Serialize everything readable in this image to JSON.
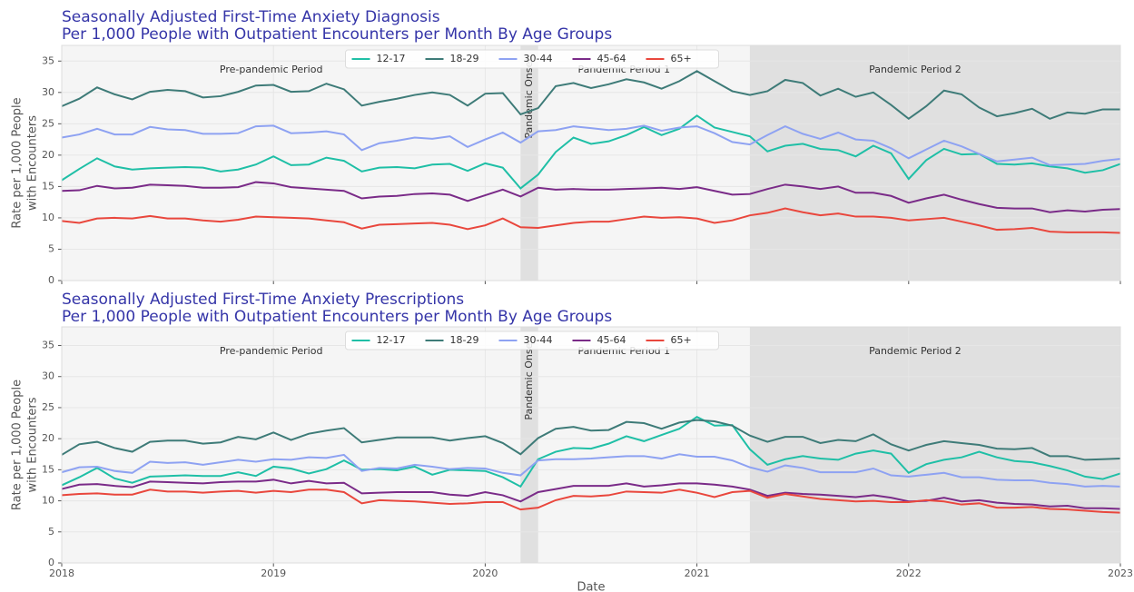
{
  "chart_data": [
    {
      "type": "line",
      "title": [
        "Seasonally Adjusted First-Time Anxiety Diagnosis",
        " Per 1,000 People with Outpatient Encounters per Month By Age Groups"
      ],
      "ylabel": [
        "Rate per 1,000 People",
        "with Encounters"
      ],
      "x": [
        2018,
        2018.083,
        2018.167,
        2018.25,
        2018.333,
        2018.417,
        2018.5,
        2018.583,
        2018.667,
        2018.75,
        2018.833,
        2018.917,
        2019,
        2019.083,
        2019.167,
        2019.25,
        2019.333,
        2019.417,
        2019.5,
        2019.583,
        2019.667,
        2019.75,
        2019.833,
        2019.917,
        2020,
        2020.083,
        2020.167,
        2020.25,
        2020.333,
        2020.417,
        2020.5,
        2020.583,
        2020.667,
        2020.75,
        2020.833,
        2020.917,
        2021,
        2021.083,
        2021.167,
        2021.25,
        2021.333,
        2021.417,
        2021.5,
        2021.583,
        2021.667,
        2021.75,
        2021.833,
        2021.917,
        2022,
        2022.083,
        2022.167,
        2022.25,
        2022.333,
        2022.417,
        2022.5,
        2022.583,
        2022.667,
        2022.75,
        2022.833,
        2022.917,
        2023
      ],
      "series": [
        {
          "name": "12-17",
          "color": "#1fbfa6",
          "values": [
            16.0,
            17.8,
            19.5,
            18.2,
            17.7,
            17.9,
            18.0,
            18.1,
            18.0,
            17.4,
            17.7,
            18.5,
            19.8,
            18.4,
            18.5,
            19.6,
            19.1,
            17.4,
            18.0,
            18.1,
            17.9,
            18.5,
            18.6,
            17.5,
            18.7,
            18.0,
            14.7,
            16.9,
            20.5,
            22.8,
            21.8,
            22.2,
            23.2,
            24.5,
            23.2,
            24.2,
            26.3,
            24.4,
            23.7,
            23.0,
            20.6,
            21.5,
            21.8,
            21.0,
            20.8,
            19.8,
            21.5,
            20.3,
            16.2,
            19.2,
            21.0,
            20.1,
            20.2,
            18.6,
            18.5,
            18.7,
            18.2,
            17.9,
            17.2,
            17.6,
            18.6
          ]
        },
        {
          "name": "18-29",
          "color": "#3e7b78",
          "values": [
            27.8,
            29.0,
            30.8,
            29.7,
            28.9,
            30.1,
            30.4,
            30.2,
            29.2,
            29.4,
            30.1,
            31.1,
            31.2,
            30.1,
            30.2,
            31.4,
            30.5,
            27.9,
            28.5,
            29.0,
            29.6,
            30.0,
            29.6,
            27.9,
            29.8,
            29.9,
            26.5,
            27.5,
            31.0,
            31.5,
            30.7,
            31.3,
            32.1,
            31.6,
            30.6,
            31.8,
            33.4,
            31.8,
            30.2,
            29.6,
            30.2,
            32.0,
            31.5,
            29.5,
            30.6,
            29.3,
            30.0,
            28.0,
            25.8,
            27.8,
            30.3,
            29.7,
            27.6,
            26.2,
            26.7,
            27.4,
            25.8,
            26.8,
            26.6,
            27.3,
            27.3
          ]
        },
        {
          "name": "30-44",
          "color": "#8ea2f2",
          "values": [
            22.8,
            23.3,
            24.2,
            23.3,
            23.3,
            24.5,
            24.1,
            24.0,
            23.4,
            23.4,
            23.5,
            24.6,
            24.7,
            23.5,
            23.6,
            23.8,
            23.3,
            20.8,
            21.9,
            22.3,
            22.8,
            22.6,
            23.0,
            21.3,
            22.5,
            23.6,
            22.0,
            23.8,
            24.0,
            24.6,
            24.3,
            24.0,
            24.2,
            24.7,
            23.9,
            24.4,
            24.6,
            23.5,
            22.1,
            21.7,
            23.2,
            24.6,
            23.4,
            22.6,
            23.6,
            22.5,
            22.3,
            21.1,
            19.5,
            20.9,
            22.3,
            21.4,
            20.2,
            19.0,
            19.3,
            19.6,
            18.4,
            18.5,
            18.6,
            19.1,
            19.4
          ]
        },
        {
          "name": "45-64",
          "color": "#7a2b88",
          "values": [
            14.3,
            14.4,
            15.1,
            14.7,
            14.8,
            15.3,
            15.2,
            15.1,
            14.8,
            14.8,
            14.9,
            15.7,
            15.5,
            14.9,
            14.7,
            14.5,
            14.3,
            13.1,
            13.4,
            13.5,
            13.8,
            13.9,
            13.7,
            12.7,
            13.6,
            14.5,
            13.4,
            14.8,
            14.5,
            14.6,
            14.5,
            14.5,
            14.6,
            14.7,
            14.8,
            14.6,
            14.9,
            14.3,
            13.7,
            13.8,
            14.6,
            15.3,
            15.0,
            14.6,
            15.0,
            14.0,
            14.0,
            13.5,
            12.4,
            13.1,
            13.7,
            12.9,
            12.2,
            11.6,
            11.5,
            11.5,
            10.9,
            11.2,
            11.0,
            11.3,
            11.4
          ]
        },
        {
          "name": "65+",
          "color": "#e9473d",
          "values": [
            9.5,
            9.2,
            9.9,
            10.0,
            9.9,
            10.3,
            9.9,
            9.9,
            9.6,
            9.4,
            9.7,
            10.2,
            10.1,
            10.0,
            9.9,
            9.6,
            9.3,
            8.3,
            8.9,
            9.0,
            9.1,
            9.2,
            8.9,
            8.2,
            8.8,
            9.9,
            8.5,
            8.4,
            8.8,
            9.2,
            9.4,
            9.4,
            9.8,
            10.2,
            10.0,
            10.1,
            9.9,
            9.2,
            9.6,
            10.4,
            10.8,
            11.5,
            10.9,
            10.4,
            10.7,
            10.2,
            10.2,
            10.0,
            9.6,
            9.8,
            10.0,
            9.4,
            8.8,
            8.1,
            8.2,
            8.4,
            7.8,
            7.7,
            7.7,
            7.7,
            7.6
          ]
        }
      ],
      "xlim": [
        2018,
        2023
      ],
      "ylim": [
        0,
        37.5
      ],
      "xticks": [
        2018,
        2019,
        2020,
        2021,
        2022,
        2023
      ],
      "yticks": [
        0,
        5,
        10,
        15,
        20,
        25,
        30,
        35
      ],
      "show_xtick_labels": false,
      "grid": true,
      "legend": "upper center",
      "periods": [
        {
          "label": "Pre-pandemic Period",
          "start": 2018,
          "end": 2020.167,
          "shaded": false
        },
        {
          "label": "Pandemic Onset",
          "start": 2020.167,
          "end": 2020.25,
          "shaded": true,
          "vertical": true
        },
        {
          "label": "Pandemic Period 1",
          "start": 2020.25,
          "end": 2021.25,
          "shaded": false
        },
        {
          "label": "Pandemic Period 2",
          "start": 2021.25,
          "end": 2023,
          "shaded": true
        }
      ]
    },
    {
      "type": "line",
      "title": [
        "Seasonally Adjusted First-Time Anxiety Prescriptions",
        " Per 1,000 People with Outpatient Encounters per Month By Age Groups"
      ],
      "ylabel": [
        "Rate per 1,000 People",
        "with Encounters"
      ],
      "xlabel": "Date",
      "x": [
        2018,
        2018.083,
        2018.167,
        2018.25,
        2018.333,
        2018.417,
        2018.5,
        2018.583,
        2018.667,
        2018.75,
        2018.833,
        2018.917,
        2019,
        2019.083,
        2019.167,
        2019.25,
        2019.333,
        2019.417,
        2019.5,
        2019.583,
        2019.667,
        2019.75,
        2019.833,
        2019.917,
        2020,
        2020.083,
        2020.167,
        2020.25,
        2020.333,
        2020.417,
        2020.5,
        2020.583,
        2020.667,
        2020.75,
        2020.833,
        2020.917,
        2021,
        2021.083,
        2021.167,
        2021.25,
        2021.333,
        2021.417,
        2021.5,
        2021.583,
        2021.667,
        2021.75,
        2021.833,
        2021.917,
        2022,
        2022.083,
        2022.167,
        2022.25,
        2022.333,
        2022.417,
        2022.5,
        2022.583,
        2022.667,
        2022.75,
        2022.833,
        2022.917,
        2023
      ],
      "series": [
        {
          "name": "12-17",
          "color": "#1fbfa6",
          "values": [
            12.5,
            13.8,
            15.3,
            13.6,
            12.9,
            13.9,
            14.0,
            14.1,
            14.0,
            14.0,
            14.6,
            14.0,
            15.5,
            15.2,
            14.4,
            15.1,
            16.5,
            15.0,
            15.1,
            14.9,
            15.5,
            14.2,
            15.0,
            14.9,
            14.8,
            13.8,
            12.3,
            16.7,
            17.9,
            18.5,
            18.4,
            19.2,
            20.4,
            19.6,
            20.6,
            21.6,
            23.5,
            22.1,
            22.2,
            18.3,
            15.8,
            16.7,
            17.2,
            16.8,
            16.6,
            17.6,
            18.1,
            17.6,
            14.5,
            15.9,
            16.6,
            17.0,
            17.9,
            17.0,
            16.4,
            16.2,
            15.6,
            14.9,
            13.9,
            13.5,
            14.4
          ]
        },
        {
          "name": "18-29",
          "color": "#3e7b78",
          "values": [
            17.4,
            19.1,
            19.5,
            18.5,
            17.9,
            19.5,
            19.7,
            19.7,
            19.2,
            19.4,
            20.3,
            19.9,
            21.0,
            19.8,
            20.8,
            21.3,
            21.7,
            19.4,
            19.8,
            20.2,
            20.2,
            20.2,
            19.7,
            20.1,
            20.4,
            19.3,
            17.5,
            20.1,
            21.6,
            21.9,
            21.3,
            21.4,
            22.7,
            22.5,
            21.6,
            22.6,
            23.0,
            22.8,
            22.1,
            20.5,
            19.5,
            20.3,
            20.3,
            19.3,
            19.8,
            19.6,
            20.7,
            19.1,
            18.1,
            19.0,
            19.6,
            19.3,
            19.0,
            18.4,
            18.3,
            18.5,
            17.2,
            17.2,
            16.6,
            16.7,
            16.8
          ]
        },
        {
          "name": "30-44",
          "color": "#8ea2f2",
          "values": [
            14.6,
            15.4,
            15.5,
            14.8,
            14.5,
            16.3,
            16.1,
            16.2,
            15.8,
            16.2,
            16.6,
            16.3,
            16.7,
            16.6,
            17.0,
            16.9,
            17.4,
            14.8,
            15.3,
            15.2,
            15.8,
            15.5,
            15.1,
            15.3,
            15.2,
            14.5,
            14.1,
            16.5,
            16.7,
            16.7,
            16.8,
            17.0,
            17.2,
            17.2,
            16.8,
            17.5,
            17.1,
            17.1,
            16.5,
            15.4,
            14.7,
            15.7,
            15.3,
            14.6,
            14.6,
            14.6,
            15.2,
            14.1,
            13.9,
            14.2,
            14.5,
            13.8,
            13.8,
            13.4,
            13.3,
            13.3,
            12.9,
            12.7,
            12.3,
            12.4,
            12.3
          ]
        },
        {
          "name": "45-64",
          "color": "#7a2b88",
          "values": [
            11.9,
            12.6,
            12.7,
            12.4,
            12.2,
            13.1,
            13.0,
            12.9,
            12.8,
            13.0,
            13.1,
            13.1,
            13.4,
            12.8,
            13.2,
            12.8,
            12.9,
            11.2,
            11.3,
            11.4,
            11.4,
            11.4,
            11.0,
            10.8,
            11.4,
            10.9,
            9.9,
            11.4,
            11.9,
            12.4,
            12.4,
            12.4,
            12.8,
            12.3,
            12.5,
            12.8,
            12.8,
            12.6,
            12.3,
            11.8,
            10.8,
            11.3,
            11.1,
            11.0,
            10.8,
            10.6,
            10.9,
            10.5,
            9.9,
            10.0,
            10.5,
            9.9,
            10.1,
            9.7,
            9.5,
            9.4,
            9.1,
            9.2,
            8.8,
            8.8,
            8.7
          ]
        },
        {
          "name": "65+",
          "color": "#e9473d",
          "values": [
            10.9,
            11.1,
            11.2,
            11.0,
            11.0,
            11.8,
            11.5,
            11.5,
            11.3,
            11.5,
            11.6,
            11.3,
            11.6,
            11.4,
            11.8,
            11.8,
            11.4,
            9.6,
            10.1,
            10.0,
            9.9,
            9.7,
            9.5,
            9.6,
            9.8,
            9.8,
            8.6,
            8.9,
            10.1,
            10.8,
            10.7,
            10.9,
            11.5,
            11.4,
            11.3,
            11.8,
            11.3,
            10.6,
            11.4,
            11.6,
            10.5,
            11.1,
            10.7,
            10.3,
            10.1,
            9.9,
            10.0,
            9.8,
            9.8,
            10.1,
            9.9,
            9.4,
            9.6,
            8.9,
            8.9,
            9.0,
            8.7,
            8.6,
            8.4,
            8.2,
            8.1
          ]
        }
      ],
      "xlim": [
        2018,
        2023
      ],
      "ylim": [
        0,
        38
      ],
      "xticks": [
        2018,
        2019,
        2020,
        2021,
        2022,
        2023
      ],
      "yticks": [
        0,
        5,
        10,
        15,
        20,
        25,
        30,
        35
      ],
      "show_xtick_labels": true,
      "grid": true,
      "legend": "upper center",
      "periods": [
        {
          "label": "Pre-pandemic Period",
          "start": 2018,
          "end": 2020.167,
          "shaded": false
        },
        {
          "label": "Pandemic Onset",
          "start": 2020.167,
          "end": 2020.25,
          "shaded": true,
          "vertical": true
        },
        {
          "label": "Pandemic Period 1",
          "start": 2020.25,
          "end": 2021.25,
          "shaded": false
        },
        {
          "label": "Pandemic Period 2",
          "start": 2021.25,
          "end": 2023,
          "shaded": true
        }
      ]
    }
  ]
}
